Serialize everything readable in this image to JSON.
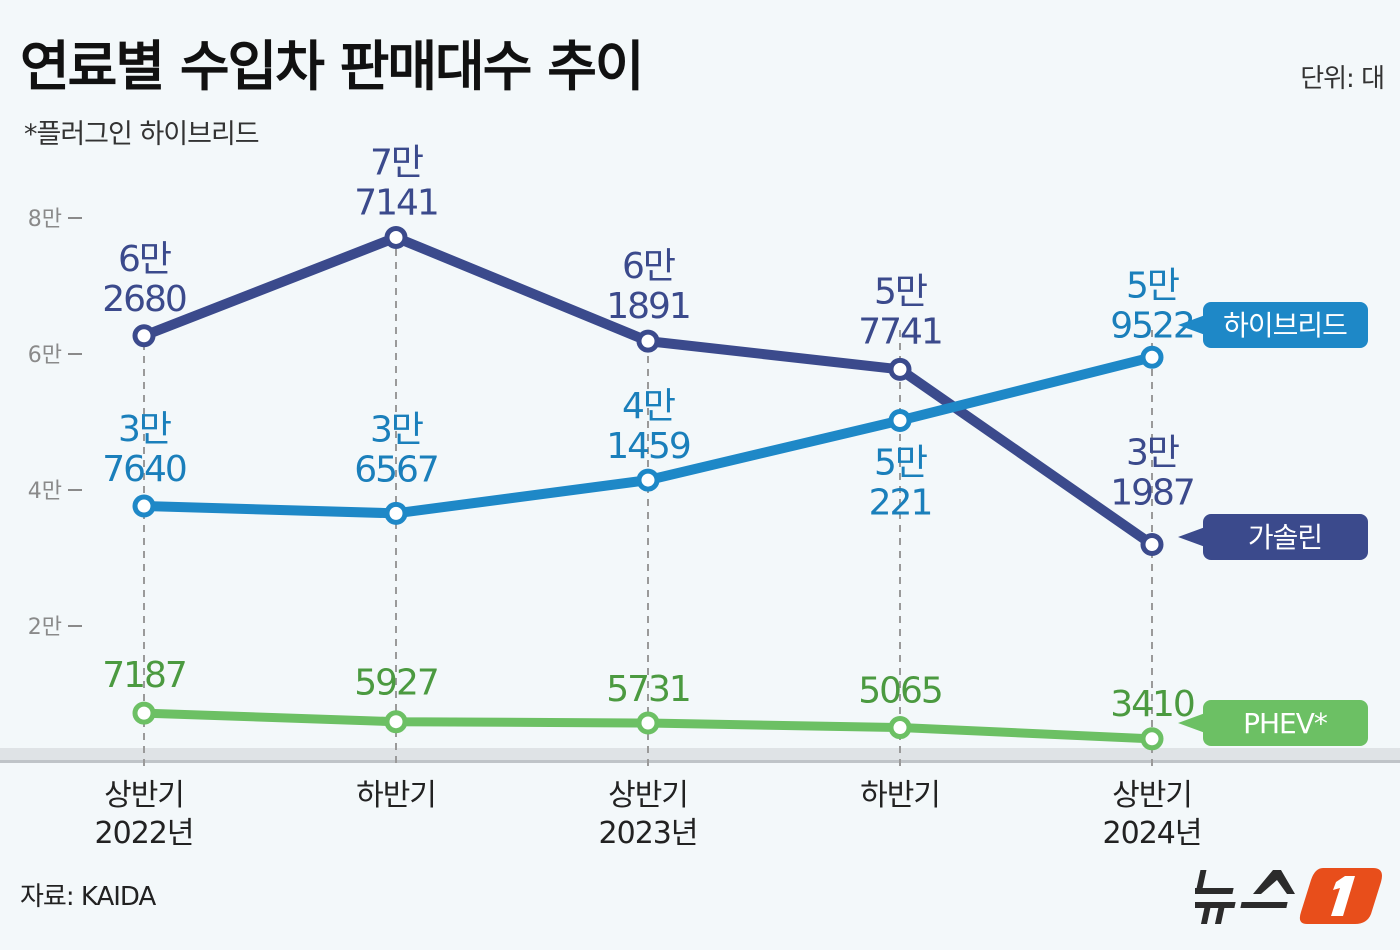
{
  "header": {
    "title": "연료별 수입차 판매대수 추이",
    "unit": "단위: 대",
    "footnote": "*플러그인 하이브리드"
  },
  "footer": {
    "source": "자료: KAIDA",
    "logo_text": "뉴스1"
  },
  "chart_data": {
    "type": "line",
    "title": "연료별 수입차 판매대수 추이",
    "ylim": [
      0,
      80000
    ],
    "grid": false,
    "y_ticks": [
      {
        "value": 20000,
        "label": "2만"
      },
      {
        "value": 40000,
        "label": "4만"
      },
      {
        "value": 60000,
        "label": "6만"
      },
      {
        "value": 80000,
        "label": "8만"
      }
    ],
    "categories": [
      {
        "line1": "상반기",
        "line2": "2022년"
      },
      {
        "line1": "하반기",
        "line2": ""
      },
      {
        "line1": "상반기",
        "line2": "2023년"
      },
      {
        "line1": "하반기",
        "line2": ""
      },
      {
        "line1": "상반기",
        "line2": "2024년"
      }
    ],
    "legend_placement": "right",
    "series": [
      {
        "name": "가솔린",
        "color": "#3b4a8c",
        "label_color": "#3b4a8c",
        "values": [
          62680,
          77141,
          61891,
          57741,
          31987
        ],
        "labels": [
          [
            "6만",
            "2680"
          ],
          [
            "7만",
            "7141"
          ],
          [
            "6만",
            "1891"
          ],
          [
            "5만",
            "7741"
          ],
          [
            "3만",
            "1987"
          ]
        ]
      },
      {
        "name": "하이브리드",
        "color": "#1e88c7",
        "label_color": "#1a7fbb",
        "values": [
          37640,
          36567,
          41459,
          50221,
          59522
        ],
        "labels": [
          [
            "3만",
            "7640"
          ],
          [
            "3만",
            "6567"
          ],
          [
            "4만",
            "1459"
          ],
          [
            "5만",
            "221"
          ],
          [
            "5만",
            "9522"
          ]
        ]
      },
      {
        "name": "PHEV*",
        "color": "#6cc064",
        "label_color": "#4b9a40",
        "values": [
          7187,
          5927,
          5731,
          5065,
          3410
        ],
        "labels": [
          [
            "7187"
          ],
          [
            "5927"
          ],
          [
            "5731"
          ],
          [
            "5065"
          ],
          [
            "3410"
          ]
        ]
      }
    ]
  }
}
